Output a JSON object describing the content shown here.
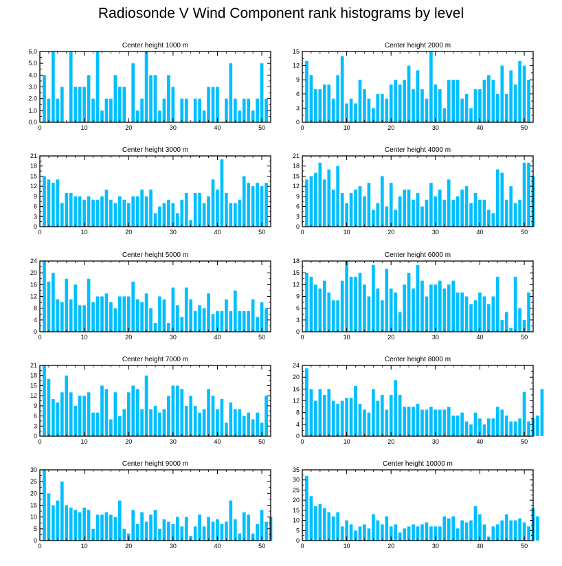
{
  "title": "Radiosonde V Wind Component rank histograms by level",
  "style": {
    "bar_color": "#00bfff",
    "axis_color": "#000000"
  },
  "chart_data": [
    {
      "type": "bar",
      "title": "Center height 1000 m",
      "xlim": [
        0,
        52
      ],
      "ylim": [
        0,
        6
      ],
      "x_ticks": [
        0,
        10,
        20,
        30,
        40,
        50
      ],
      "y_ticks": [
        "0.0",
        "1.0",
        "2.0",
        "3.0",
        "4.0",
        "5.0",
        "6.0"
      ],
      "values": [
        4,
        2,
        6,
        2,
        3,
        0,
        6,
        3,
        3,
        3,
        4,
        2,
        6,
        1,
        2,
        2,
        4,
        3,
        3,
        0,
        5,
        1,
        2,
        6,
        4,
        4,
        1,
        2,
        4,
        3,
        0,
        2,
        2,
        0,
        2,
        2,
        1,
        3,
        3,
        3,
        0,
        2,
        5,
        2,
        1,
        2,
        2,
        1,
        2,
        5,
        2
      ]
    },
    {
      "type": "bar",
      "title": "Center height 2000 m",
      "xlim": [
        0,
        52
      ],
      "ylim": [
        0,
        15
      ],
      "x_ticks": [
        0,
        10,
        20,
        30,
        40,
        50
      ],
      "y_ticks": [
        "0",
        "3",
        "6",
        "9",
        "12",
        "15"
      ],
      "values": [
        13,
        10,
        7,
        7,
        8,
        8,
        5,
        10,
        14,
        4,
        5,
        4,
        9,
        7,
        5,
        3,
        6,
        6,
        5,
        8,
        9,
        8,
        9,
        12,
        7,
        11,
        7,
        5,
        15,
        8,
        7,
        3,
        9,
        9,
        9,
        5,
        6,
        3,
        7,
        7,
        9,
        10,
        9,
        6,
        12,
        6,
        11,
        8,
        13,
        12,
        9
      ]
    },
    {
      "type": "bar",
      "title": "Center height 3000 m",
      "xlim": [
        0,
        52
      ],
      "ylim": [
        0,
        21
      ],
      "x_ticks": [
        0,
        10,
        20,
        30,
        40,
        50
      ],
      "y_ticks": [
        "0",
        "3",
        "6",
        "9",
        "12",
        "15",
        "18",
        "21"
      ],
      "values": [
        15,
        14,
        13,
        14,
        7,
        10,
        10,
        9,
        9,
        8,
        9,
        8,
        8,
        9,
        11,
        8,
        7,
        9,
        8,
        7,
        9,
        9,
        11,
        9,
        11,
        4,
        6,
        7,
        8,
        7,
        4,
        8,
        10,
        2,
        10,
        10,
        7,
        9,
        14,
        11,
        20,
        10,
        7,
        7,
        8,
        15,
        13,
        12,
        13,
        12,
        13
      ]
    },
    {
      "type": "bar",
      "title": "Center height 4000 m",
      "xlim": [
        0,
        52
      ],
      "ylim": [
        0,
        21
      ],
      "x_ticks": [
        0,
        10,
        20,
        30,
        40,
        50
      ],
      "y_ticks": [
        "0",
        "3",
        "6",
        "9",
        "12",
        "15",
        "18",
        "21"
      ],
      "values": [
        14,
        15,
        16,
        19,
        14,
        17,
        11,
        18,
        10,
        7,
        10,
        11,
        12,
        9,
        13,
        5,
        7,
        15,
        6,
        13,
        5,
        9,
        11,
        11,
        8,
        10,
        6,
        8,
        13,
        9,
        11,
        8,
        14,
        8,
        9,
        11,
        12,
        7,
        10,
        8,
        8,
        5,
        4,
        17,
        16,
        8,
        12,
        7,
        8,
        19,
        19,
        15
      ]
    },
    {
      "type": "bar",
      "title": "Center height 5000 m",
      "xlim": [
        0,
        52
      ],
      "ylim": [
        0,
        24
      ],
      "x_ticks": [
        0,
        10,
        20,
        30,
        40,
        50
      ],
      "y_ticks": [
        "0",
        "4",
        "8",
        "12",
        "16",
        "20",
        "24"
      ],
      "values": [
        24,
        17,
        20,
        11,
        10,
        18,
        11,
        16,
        9,
        9,
        18,
        10,
        12,
        12,
        13,
        10,
        8,
        12,
        12,
        12,
        17,
        11,
        10,
        13,
        8,
        3,
        12,
        11,
        3,
        15,
        9,
        5,
        15,
        11,
        7,
        9,
        8,
        13,
        6,
        7,
        7,
        11,
        7,
        14,
        7,
        7,
        7,
        11,
        5,
        10,
        8
      ]
    },
    {
      "type": "bar",
      "title": "Center height 6000 m",
      "xlim": [
        0,
        52
      ],
      "ylim": [
        0,
        18
      ],
      "x_ticks": [
        0,
        10,
        20,
        30,
        40,
        50
      ],
      "y_ticks": [
        "0",
        "3",
        "6",
        "9",
        "12",
        "15",
        "18"
      ],
      "values": [
        15,
        14,
        12,
        11,
        13,
        10,
        8,
        8,
        13,
        18,
        14,
        14,
        15,
        12,
        9,
        17,
        11,
        8,
        16,
        11,
        10,
        5,
        12,
        15,
        11,
        17,
        13,
        9,
        12,
        12,
        13,
        11,
        12,
        13,
        10,
        10,
        9,
        7,
        8,
        10,
        9,
        7,
        9,
        14,
        3,
        5,
        1,
        14,
        6,
        3,
        10
      ]
    },
    {
      "type": "bar",
      "title": "Center height 7000 m",
      "xlim": [
        0,
        52
      ],
      "ylim": [
        0,
        21
      ],
      "x_ticks": [
        0,
        10,
        20,
        30,
        40,
        50
      ],
      "y_ticks": [
        "0",
        "3",
        "6",
        "9",
        "12",
        "15",
        "18",
        "21"
      ],
      "values": [
        21,
        17,
        11,
        10,
        13,
        18,
        13,
        9,
        12,
        12,
        13,
        7,
        7,
        15,
        14,
        5,
        13,
        6,
        8,
        13,
        15,
        14,
        8,
        18,
        8,
        9,
        7,
        8,
        12,
        15,
        15,
        14,
        9,
        12,
        9,
        7,
        8,
        14,
        12,
        8,
        11,
        4,
        10,
        8,
        8,
        6,
        7,
        5,
        7,
        4,
        12
      ]
    },
    {
      "type": "bar",
      "title": "Center height 8000 m",
      "xlim": [
        0,
        52
      ],
      "ylim": [
        0,
        24
      ],
      "x_ticks": [
        0,
        10,
        20,
        30,
        40,
        50
      ],
      "y_ticks": [
        "0",
        "4",
        "8",
        "12",
        "16",
        "20",
        "24"
      ],
      "values": [
        23,
        16,
        12,
        16,
        14,
        16,
        12,
        11,
        12,
        13,
        13,
        17,
        11,
        9,
        8,
        16,
        12,
        14,
        9,
        14,
        19,
        14,
        10,
        10,
        10,
        11,
        9,
        9,
        10,
        9,
        9,
        9,
        10,
        7,
        7,
        8,
        5,
        4,
        8,
        6,
        4,
        6,
        6,
        10,
        9,
        7,
        5,
        5,
        6,
        15,
        5,
        6,
        7,
        16
      ]
    },
    {
      "type": "bar",
      "title": "Center height 9000 m",
      "xlim": [
        0,
        52
      ],
      "ylim": [
        0,
        30
      ],
      "x_ticks": [
        0,
        10,
        20,
        30,
        40,
        50
      ],
      "y_ticks": [
        "0",
        "5",
        "10",
        "15",
        "20",
        "25",
        "30"
      ],
      "values": [
        30,
        20,
        15,
        17,
        25,
        15,
        14,
        13,
        12,
        14,
        13,
        5,
        11,
        11,
        12,
        11,
        10,
        17,
        5,
        3,
        13,
        7,
        12,
        8,
        11,
        13,
        5,
        9,
        8,
        7,
        10,
        6,
        10,
        2,
        6,
        11,
        6,
        10,
        8,
        9,
        7,
        8,
        17,
        9,
        3,
        12,
        11,
        3,
        7,
        13,
        8,
        10
      ]
    },
    {
      "type": "bar",
      "title": "Center height 10000 m",
      "xlim": [
        0,
        52
      ],
      "ylim": [
        0,
        35
      ],
      "x_ticks": [
        0,
        10,
        20,
        30,
        40,
        50
      ],
      "y_ticks": [
        "0",
        "5",
        "10",
        "15",
        "20",
        "25",
        "30",
        "35"
      ],
      "values": [
        32,
        22,
        17,
        18,
        16,
        14,
        12,
        14,
        7,
        10,
        8,
        5,
        7,
        8,
        6,
        13,
        10,
        8,
        12,
        7,
        8,
        4,
        6,
        7,
        8,
        7,
        8,
        9,
        7,
        7,
        7,
        12,
        11,
        12,
        6,
        10,
        9,
        10,
        17,
        13,
        8,
        2,
        7,
        8,
        10,
        13,
        10,
        10,
        11,
        9,
        7,
        16,
        12
      ]
    }
  ]
}
